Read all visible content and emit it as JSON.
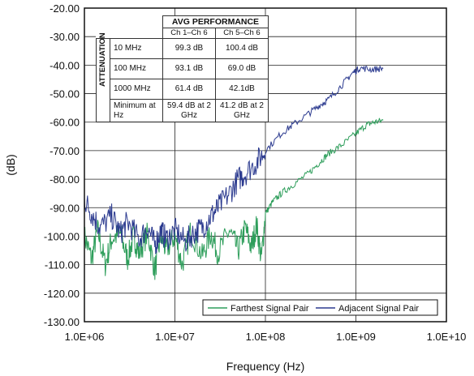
{
  "chart_data": {
    "type": "line",
    "xlabel": "Frequency (Hz)",
    "ylabel": "(dB)",
    "x_scale": "log",
    "xlim": [
      1000000,
      10000000000
    ],
    "ylim": [
      -130,
      -20
    ],
    "grid": true,
    "x_ticks": [
      "1.0E+06",
      "1.0E+07",
      "1.0E+08",
      "1.0E+09",
      "1.0E+10"
    ],
    "y_ticks": [
      "-20.00",
      "-30.00",
      "-40.00",
      "-50.00",
      "-60.00",
      "-70.00",
      "-80.00",
      "-90.00",
      "-100.00",
      "-110.00",
      "-120.00",
      "-130.00"
    ],
    "legend_position": "bottom-right",
    "series": [
      {
        "name": "Farthest Signal Pair",
        "color": "#2e9e5b",
        "points": [
          [
            1000000,
            -100
          ],
          [
            1200000,
            -108
          ],
          [
            1400000,
            -98
          ],
          [
            1700000,
            -110
          ],
          [
            2000000,
            -101
          ],
          [
            2500000,
            -99
          ],
          [
            3000000,
            -108
          ],
          [
            3500000,
            -100
          ],
          [
            4000000,
            -106
          ],
          [
            5000000,
            -99
          ],
          [
            6000000,
            -112
          ],
          [
            7000000,
            -100
          ],
          [
            8000000,
            -105
          ],
          [
            10000000,
            -100
          ],
          [
            12000000,
            -110
          ],
          [
            15000000,
            -98
          ],
          [
            20000000,
            -107
          ],
          [
            25000000,
            -99
          ],
          [
            30000000,
            -106
          ],
          [
            40000000,
            -98
          ],
          [
            50000000,
            -105
          ],
          [
            60000000,
            -97
          ],
          [
            70000000,
            -104
          ],
          [
            80000000,
            -96
          ],
          [
            90000000,
            -108
          ],
          [
            100000000,
            -92
          ],
          [
            120000000,
            -88
          ],
          [
            150000000,
            -85
          ],
          [
            200000000,
            -82
          ],
          [
            300000000,
            -78
          ],
          [
            400000000,
            -74
          ],
          [
            500000000,
            -71
          ],
          [
            700000000,
            -68
          ],
          [
            1000000000,
            -64
          ],
          [
            1300000000,
            -61
          ],
          [
            1600000000,
            -60
          ],
          [
            2000000000,
            -59.4
          ]
        ]
      },
      {
        "name": "Adjacent Signal Pair",
        "color": "#2b3a8f",
        "points": [
          [
            1000000,
            -87
          ],
          [
            1200000,
            -92
          ],
          [
            1500000,
            -97
          ],
          [
            2000000,
            -93
          ],
          [
            2500000,
            -99
          ],
          [
            3000000,
            -95
          ],
          [
            4000000,
            -101
          ],
          [
            5000000,
            -97
          ],
          [
            6000000,
            -103
          ],
          [
            7000000,
            -98
          ],
          [
            8000000,
            -101
          ],
          [
            10000000,
            -98
          ],
          [
            13000000,
            -102
          ],
          [
            16000000,
            -99
          ],
          [
            20000000,
            -97
          ],
          [
            25000000,
            -93
          ],
          [
            30000000,
            -90
          ],
          [
            40000000,
            -85
          ],
          [
            50000000,
            -80
          ],
          [
            60000000,
            -78
          ],
          [
            80000000,
            -74
          ],
          [
            100000000,
            -70
          ],
          [
            150000000,
            -64
          ],
          [
            200000000,
            -61
          ],
          [
            300000000,
            -57
          ],
          [
            400000000,
            -54
          ],
          [
            500000000,
            -52
          ],
          [
            700000000,
            -47
          ],
          [
            900000000,
            -43
          ],
          [
            1100000000,
            -41
          ],
          [
            1500000000,
            -41.5
          ],
          [
            2000000000,
            -41.2
          ]
        ]
      }
    ]
  },
  "table": {
    "title": "AVG PERFORMANCE",
    "col1": "Ch 1–Ch 6",
    "col2": "Ch 5–Ch 6",
    "side_label": "ATTENUATION",
    "rows": [
      {
        "label": "10 MHz",
        "c1": "99.3 dB",
        "c2": "100.4 dB"
      },
      {
        "label": "100 MHz",
        "c1": "93.1 dB",
        "c2": "69.0 dB"
      },
      {
        "label": "1000 MHz",
        "c1": "61.4 dB",
        "c2": "42.1dB"
      },
      {
        "label": "Minimum at Hz",
        "c1": "59.4 dB at 2 GHz",
        "c2": "41.2 dB at 2 GHz"
      }
    ]
  }
}
